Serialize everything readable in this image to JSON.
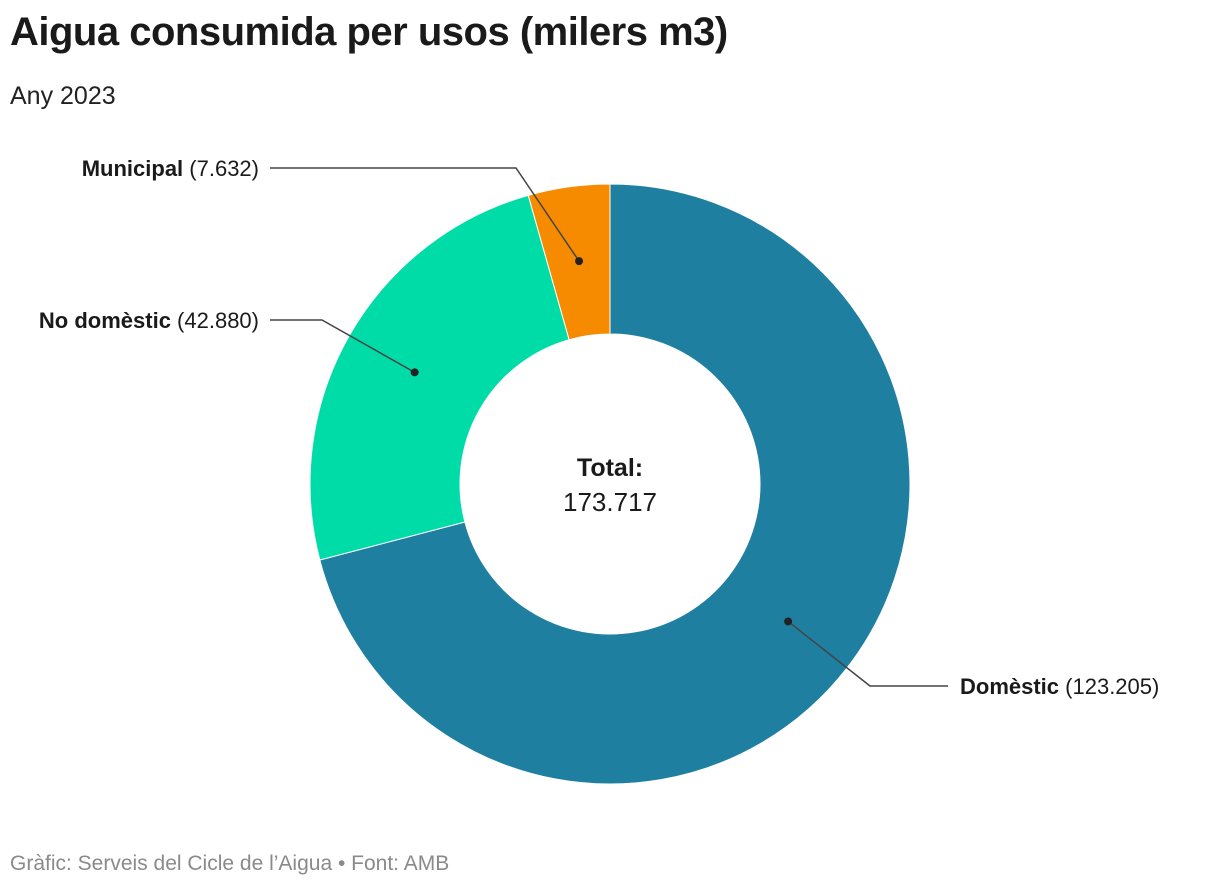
{
  "header": {
    "title": "Aigua consumida per usos (milers m3)",
    "subtitle": "Any 2023"
  },
  "footer": {
    "credit": "Gràfic: Serveis del Cicle de l’Aigua • Font: AMB"
  },
  "chart_data": {
    "type": "pie",
    "variant": "donut",
    "title": "Aigua consumida per usos (milers m3)",
    "subtitle": "Any 2023",
    "center_label": {
      "heading": "Total:",
      "value": "173.717"
    },
    "total": 173717,
    "slices": [
      {
        "name": "Domèstic",
        "value": 123205,
        "value_label": "(123.205)",
        "color": "#1f7fa1",
        "label_side": "right"
      },
      {
        "name": "No domèstic",
        "value": 42880,
        "value_label": "(42.880)",
        "color": "#00dca8",
        "label_side": "left"
      },
      {
        "name": "Municipal",
        "value": 7632,
        "value_label": "(7.632)",
        "color": "#f78b00",
        "label_side": "left"
      }
    ],
    "start_angle": "top, clockwise"
  }
}
